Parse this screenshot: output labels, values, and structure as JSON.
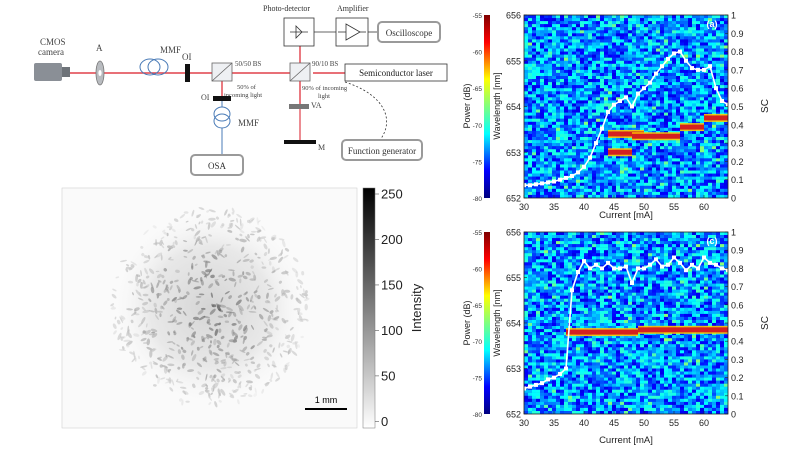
{
  "setup": {
    "labels": {
      "cmos": [
        "CMOS",
        "camera"
      ],
      "aperture": "A",
      "mmf_top": "MMF",
      "oi_top": "OI",
      "bs_left": "50/50 BS",
      "bs_left_note": [
        "50% of",
        "incoming light"
      ],
      "oi_bottom": "OI",
      "mmf_bottom": "MMF",
      "osa": "OSA",
      "bs_right": "90/10 BS",
      "bs_right_note": [
        "90% of incoming",
        "light"
      ],
      "va": "VA",
      "mirror": "M",
      "photodetector": "Photo-detector",
      "amplifier": "Amplifier",
      "oscilloscope": "Oscilloscope",
      "laser": "Semiconductor laser",
      "function_generator": "Function generator"
    }
  },
  "speckle": {
    "colorbar_label": "Intensity",
    "colorbar_ticks": [
      "250",
      "200",
      "150",
      "100",
      "50",
      "0"
    ],
    "scalebar_label": "1 mm"
  },
  "chart_data": [
    {
      "type": "heatmap",
      "panel_label": "(a)",
      "xlabel": "Current [mA]",
      "ylabel": "Wavelength [nm]",
      "y2label": "SC",
      "colorbar_label": "Power (dB)",
      "x_ticks": [
        "30",
        "35",
        "40",
        "45",
        "50",
        "55",
        "60"
      ],
      "y_ticks": [
        "652",
        "653",
        "654",
        "655",
        "656"
      ],
      "y2_ticks": [
        "0",
        "0.1",
        "0.2",
        "0.3",
        "0.4",
        "0.5",
        "0.6",
        "0.7",
        "0.8",
        "0.9",
        "1"
      ],
      "colorbar_ticks": [
        "-55",
        "-60",
        "-65",
        "-70",
        "-75",
        "-80"
      ],
      "xlim": [
        30,
        64
      ],
      "ylim": [
        652,
        656
      ],
      "y2lim": [
        0,
        1
      ],
      "clim": [
        -80,
        -55
      ],
      "lasing_band": [
        {
          "x": [
            44,
            48
          ],
          "y": 653.0
        },
        {
          "x": [
            44,
            50
          ],
          "y": 653.4
        },
        {
          "x": [
            48,
            56
          ],
          "y": 653.35
        },
        {
          "x": [
            56,
            60
          ],
          "y": 653.55
        },
        {
          "x": [
            60,
            64
          ],
          "y": 653.75
        }
      ],
      "series": [
        {
          "x": [
            30,
            31,
            32,
            33,
            34,
            35,
            36,
            37,
            38,
            39,
            40,
            41,
            42,
            43,
            44,
            45,
            46,
            47,
            48,
            49,
            50,
            51,
            52,
            53,
            54,
            55,
            56,
            57,
            58,
            59,
            60,
            61,
            62,
            63,
            64
          ],
          "values": [
            0.07,
            0.07,
            0.075,
            0.08,
            0.085,
            0.09,
            0.1,
            0.11,
            0.12,
            0.14,
            0.17,
            0.22,
            0.3,
            0.38,
            0.47,
            0.51,
            0.53,
            0.55,
            0.5,
            0.57,
            0.6,
            0.63,
            0.68,
            0.72,
            0.76,
            0.79,
            0.8,
            0.75,
            0.71,
            0.7,
            0.7,
            0.72,
            0.6,
            0.53,
            0.51
          ]
        }
      ]
    },
    {
      "type": "heatmap",
      "panel_label": "(c)",
      "xlabel": "Current [mA]",
      "ylabel": "Wavelength [nm]",
      "y2label": "SC",
      "colorbar_label": "Power (dB)",
      "x_ticks": [
        "30",
        "35",
        "40",
        "45",
        "50",
        "55",
        "60"
      ],
      "y_ticks": [
        "652",
        "653",
        "654",
        "655",
        "656"
      ],
      "y2_ticks": [
        "0",
        "0.1",
        "0.2",
        "0.3",
        "0.4",
        "0.5",
        "0.6",
        "0.7",
        "0.8",
        "0.9",
        "1"
      ],
      "colorbar_ticks": [
        "-55",
        "-60",
        "-65",
        "-70",
        "-75",
        "-80"
      ],
      "xlim": [
        30,
        64
      ],
      "ylim": [
        652,
        656
      ],
      "y2lim": [
        0,
        1
      ],
      "clim": [
        -80,
        -55
      ],
      "lasing_band": [
        {
          "x": [
            37,
            49
          ],
          "y": 653.8
        },
        {
          "x": [
            49,
            64
          ],
          "y": 653.85
        }
      ],
      "series": [
        {
          "x": [
            30,
            31,
            32,
            33,
            34,
            35,
            36,
            37,
            38,
            39,
            40,
            41,
            42,
            43,
            44,
            45,
            46,
            47,
            48,
            49,
            50,
            51,
            52,
            53,
            54,
            55,
            56,
            57,
            58,
            59,
            60,
            61,
            62,
            63,
            64
          ],
          "values": [
            0.14,
            0.15,
            0.16,
            0.17,
            0.19,
            0.2,
            0.22,
            0.25,
            0.68,
            0.78,
            0.84,
            0.8,
            0.82,
            0.8,
            0.83,
            0.8,
            0.8,
            0.81,
            0.72,
            0.8,
            0.8,
            0.82,
            0.85,
            0.81,
            0.82,
            0.86,
            0.83,
            0.79,
            0.82,
            0.8,
            0.86,
            0.83,
            0.82,
            0.8,
            0.79
          ]
        }
      ]
    }
  ]
}
